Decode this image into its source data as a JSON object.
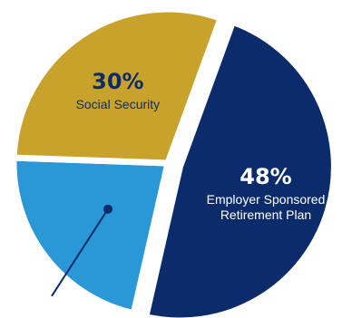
{
  "chart_data": {
    "type": "pie",
    "slices": [
      {
        "name": "Employer Sponsored Retirement Plan",
        "name_lines": [
          "Employer Sponsored",
          "Retirement Plan"
        ],
        "value": 48,
        "label": "48%",
        "color": "#0b2b6b",
        "label_color": "#ffffff",
        "exploded": true
      },
      {
        "name": "",
        "name_lines": [],
        "value": 22,
        "label": "",
        "color": "#2a97d6",
        "label_color": "#ffffff",
        "exploded": false
      },
      {
        "name": "Social Security",
        "name_lines": [
          "Social Security"
        ],
        "value": 30,
        "label": "30%",
        "color": "#c9a22c",
        "label_color": "#0b2b6b",
        "exploded": false
      }
    ],
    "start_angle_deg": 20,
    "direction": "clockwise",
    "background": "#ffffff",
    "separator_color": "#ffffff",
    "annotation": {
      "slice": 1,
      "line_color": "#0b2b6b",
      "marker": "dot",
      "marker_color": "#0b2b6b"
    }
  }
}
